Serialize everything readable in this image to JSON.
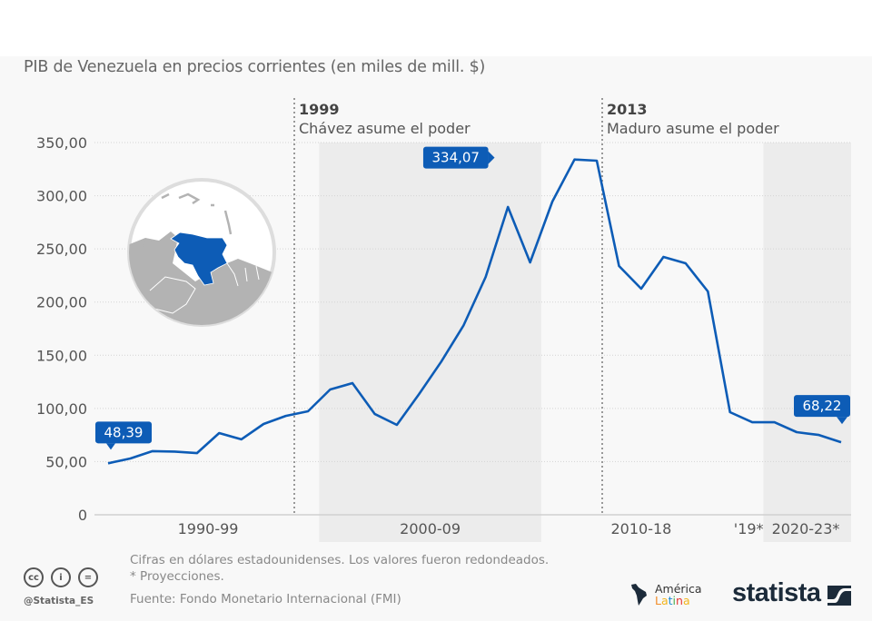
{
  "title": "PIB de Venezuela en precios corrientes (en miles de mill. $)",
  "chart_data": {
    "type": "line",
    "title": "PIB de Venezuela en precios corrientes (en miles de mill. $)",
    "xlabel": "",
    "ylabel": "",
    "ylim": [
      0,
      350
    ],
    "grid": true,
    "y_ticks": [
      "0",
      "50,00",
      "100,00",
      "150,00",
      "200,00",
      "250,00",
      "300,00",
      "350,00"
    ],
    "y_tick_values": [
      0,
      50,
      100,
      150,
      200,
      250,
      300,
      350
    ],
    "x": [
      1990,
      1991,
      1992,
      1993,
      1994,
      1995,
      1996,
      1997,
      1998,
      1999,
      2000,
      2001,
      2002,
      2003,
      2004,
      2005,
      2006,
      2007,
      2008,
      2009,
      2010,
      2011,
      2012,
      2013,
      2014,
      2015,
      2016,
      2017,
      2018,
      2019,
      2020,
      2021,
      2022,
      2023
    ],
    "series": [
      {
        "name": "PIB",
        "color": "#0d5cb6",
        "values": [
          48.39,
          52.9,
          59.8,
          59.4,
          58.0,
          76.8,
          70.9,
          85.4,
          93.0,
          97.3,
          117.8,
          123.8,
          94.8,
          84.5,
          113.5,
          144.0,
          178.0,
          223.7,
          289.4,
          237.3,
          294.5,
          334.07,
          332.9,
          233.9,
          212.6,
          242.4,
          236.5,
          210.0,
          96.5,
          87.0,
          87.0,
          77.7,
          75.0,
          68.22
        ]
      }
    ],
    "x_groups": [
      {
        "label": "1990-99",
        "from": 1990,
        "to": 1999,
        "shaded": false
      },
      {
        "label": "2000-09",
        "from": 2000,
        "to": 2009,
        "shaded": true
      },
      {
        "label": "2010-18",
        "from": 2010,
        "to": 2018,
        "shaded": false
      },
      {
        "label": "'19*",
        "from": 2019,
        "to": 2019,
        "shaded": false
      },
      {
        "label": "2020-23*",
        "from": 2020,
        "to": 2023,
        "shaded": true
      }
    ],
    "annotations": [
      {
        "year_label": "1999",
        "text": "Chávez asume el poder",
        "at": 1999.4
      },
      {
        "year_label": "2013",
        "text": "Maduro asume el poder",
        "at": 2013.2
      }
    ],
    "data_labels": [
      {
        "text": "48,39",
        "index": 0
      },
      {
        "text": "334,07",
        "index": 21
      },
      {
        "text": "68,22",
        "index": 33
      }
    ]
  },
  "footer": {
    "note1": "Cifras en dólares estadounidenses. Los valores fueron redondeados.",
    "note2": "* Proyecciones.",
    "source": "Fuente: Fondo Monetario Internacional (FMI)",
    "handle": "@Statista_ES",
    "cc_icons": [
      "cc",
      "i",
      "="
    ],
    "logo_top": "América",
    "logo_bottom": "Latina",
    "logo_bottom_colors": [
      "#f28c28",
      "#f2b51c",
      "#1f8bd0",
      "#4caf50",
      "#e53935",
      "#f2b51c"
    ],
    "brand": "statista"
  },
  "colors": {
    "line": "#0d5cb6",
    "label_bg": "#0d5cb6",
    "band": "#ececec",
    "brand": "#1c2b3a"
  }
}
